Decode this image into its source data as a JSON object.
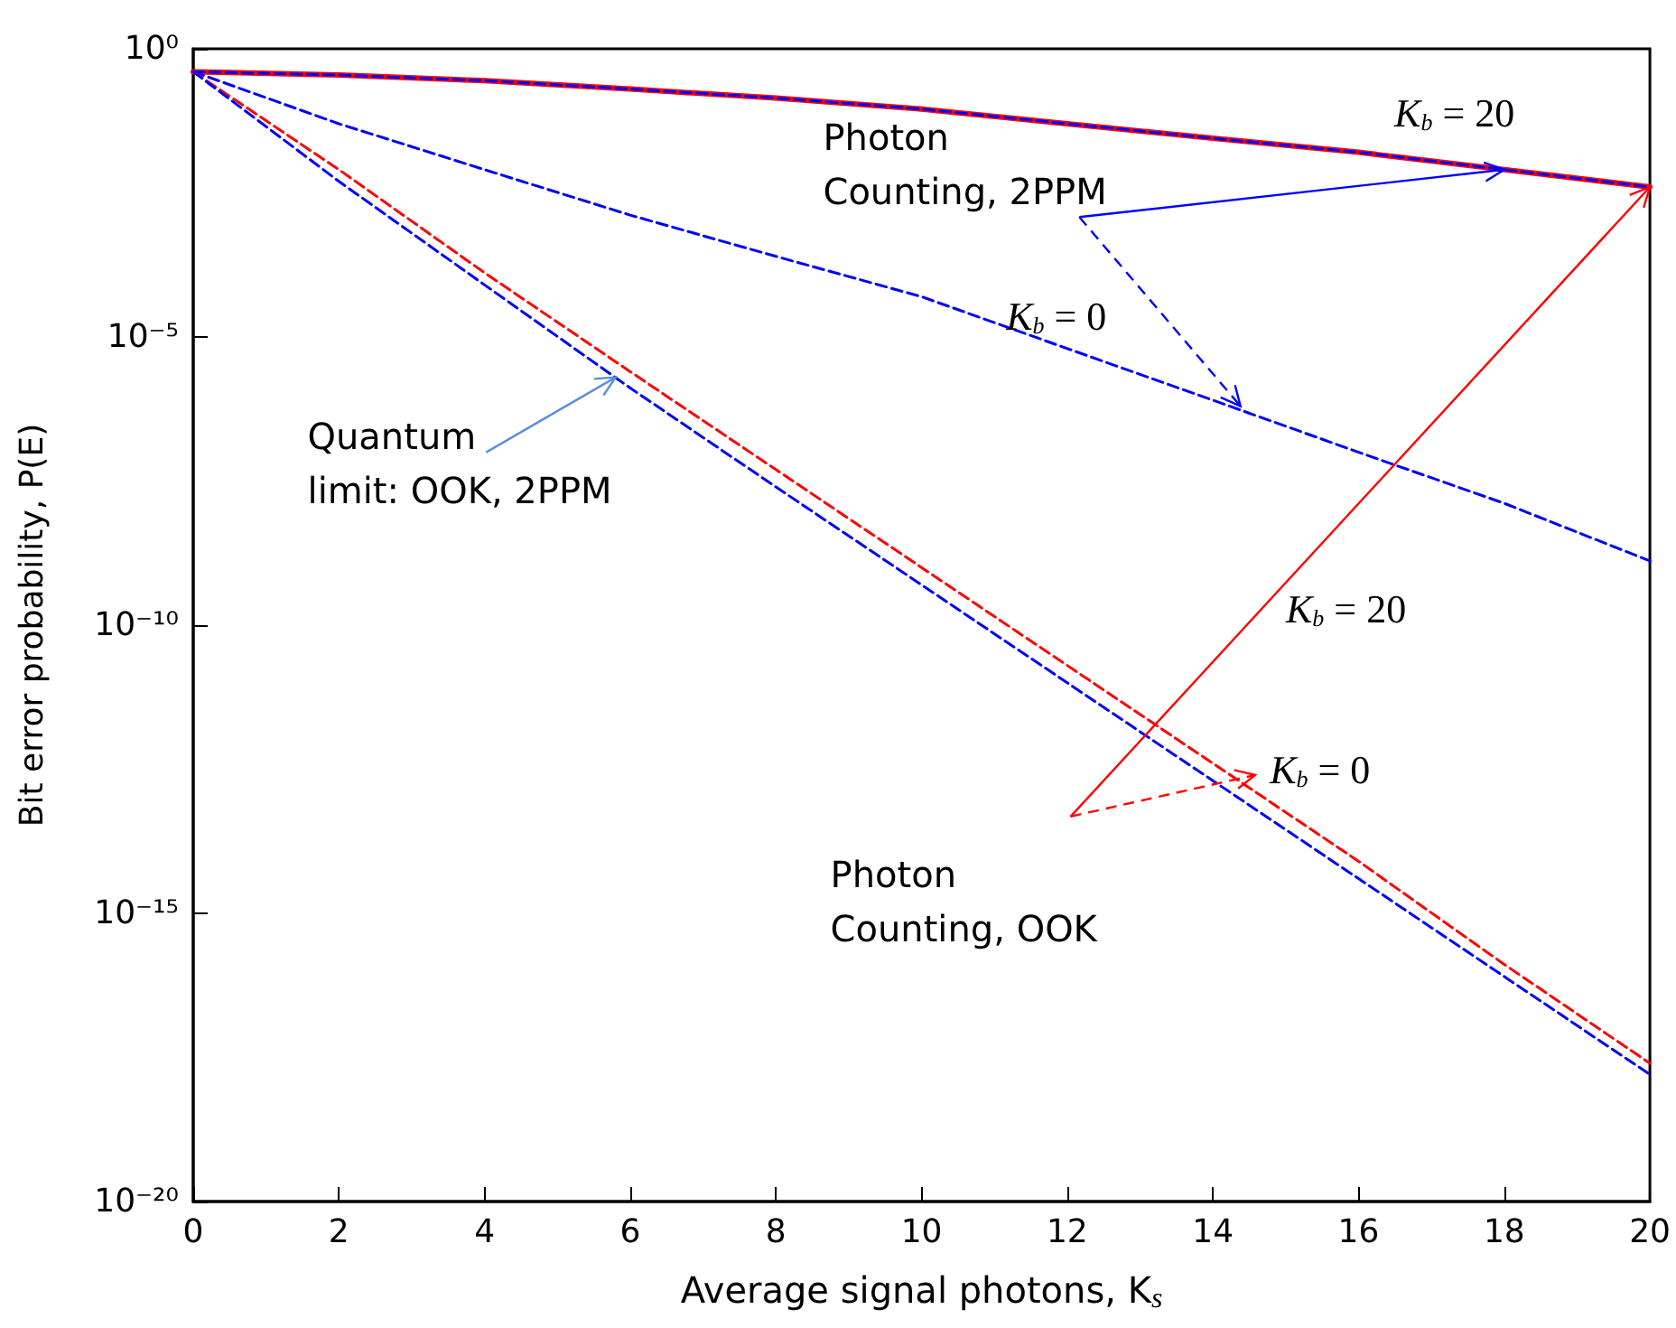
{
  "chart_data": {
    "type": "line",
    "xlabel": "Average signal photons, K$_{s}$",
    "ylabel": "Bit error probability, P(E)",
    "x": [
      0,
      2,
      4,
      6,
      8,
      10,
      12,
      14,
      16,
      18,
      20
    ],
    "series": [
      {
        "color": "#0000ff",
        "line_style": "dashed",
        "values": [
          0.4,
          0.35,
          0.28,
          0.2,
          0.14,
          0.09,
          0.05,
          0.028,
          0.016,
          0.008,
          0.004
        ]
      },
      {
        "color": "#ff0000",
        "line_style": "solid",
        "values": [
          0.4,
          0.35,
          0.28,
          0.2,
          0.14,
          0.09,
          0.05,
          0.028,
          0.016,
          0.008,
          0.004
        ]
      },
      {
        "color": "#0000ff",
        "line_style": "dashed",
        "values": [
          0.4,
          0.05,
          0.008,
          0.0013,
          0.00025,
          5e-05,
          6.3e-06,
          8e-07,
          1e-07,
          1.3e-08,
          1.3e-09
        ]
      },
      {
        "color": "#ff0000",
        "line_style": "dashed",
        "values": [
          0.4,
          0.008,
          0.00013,
          2.5e-06,
          5e-08,
          1e-09,
          2e-11,
          4e-13,
          8e-15,
          1.3e-16,
          2.5e-18
        ]
      },
      {
        "color": "#0000ff",
        "line_style": "dashed",
        "values": [
          0.4,
          0.005,
          8e-05,
          1.3e-06,
          2.5e-08,
          5e-10,
          1e-11,
          2e-13,
          4e-15,
          8e-17,
          1.6e-18
        ]
      }
    ],
    "xlim": [
      0,
      20
    ],
    "xticks": [
      0,
      2,
      4,
      6,
      8,
      10,
      12,
      14,
      16,
      18,
      20
    ],
    "ylim": [
      1e-20,
      1
    ],
    "yticks": [
      {
        "value": 1e-20,
        "label": "10⁻²⁰"
      },
      {
        "value": 1e-15,
        "label": "10⁻¹⁵"
      },
      {
        "value": 1e-10,
        "label": "10⁻¹⁰"
      },
      {
        "value": 1e-05,
        "label": "10⁻⁵"
      },
      {
        "value": 1,
        "label": "10⁰"
      }
    ],
    "log": "y",
    "grid": false,
    "marker": "none",
    "annotations": [
      {
        "text": "Photon Counting, 2PPM",
        "x": 18,
        "y": 0.008
      },
      "K$_{b}$ = 20",
      "K$_{b}$ = 0",
      {
        "text": "Quantum limit: OOK, 2PPM",
        "x": 5.8,
        "y": 2e-06
      },
      "K$_{b}$ = 20",
      "K$_{b}$ = 0",
      {
        "text": "Photon Counting, OOK",
        "x": 20,
        "y": 0.004
      }
    ]
  }
}
